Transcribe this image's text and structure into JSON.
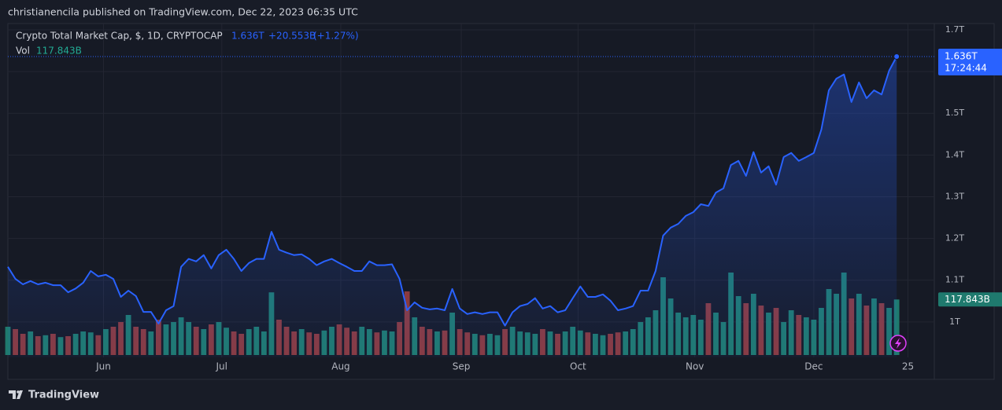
{
  "header": {
    "byline": "christianencila published on TradingView.com, Dec 22, 2023 06:35 UTC",
    "footer": "TradingView"
  },
  "chart_data": {
    "type": "line",
    "title": "Crypto Total Market Cap, $, 1D, CRYPTOCAP",
    "last_label": "1.636T",
    "change": "+20.553B",
    "change_pct": "(+1.27%)",
    "vol_title": "Vol",
    "vol_label": "117.843B",
    "countdown": "17:24:44",
    "color": "#2962ff",
    "grid": true,
    "categories": [
      null,
      null,
      null,
      null,
      null,
      null,
      null,
      null,
      null,
      null,
      null,
      null,
      null,
      null,
      null,
      null,
      null,
      null,
      null,
      null,
      null,
      null,
      null,
      null,
      null,
      null,
      null,
      null,
      null,
      null,
      null,
      null,
      null,
      null,
      null,
      null,
      null,
      null,
      null,
      null,
      null,
      null,
      null,
      null,
      null,
      null,
      null,
      null,
      null,
      null,
      null,
      null,
      null,
      null,
      null,
      null,
      null,
      null,
      null,
      null,
      null,
      null,
      null,
      null,
      null,
      null,
      null,
      null,
      null,
      null,
      null,
      null,
      null,
      null,
      null,
      null,
      null,
      null,
      null,
      null,
      null,
      null,
      null,
      null,
      null,
      null,
      null,
      null,
      null,
      null,
      null,
      null,
      null,
      null,
      null,
      null,
      null,
      null,
      null,
      null,
      null,
      null,
      null,
      null,
      null,
      null,
      null,
      null,
      null,
      null,
      null,
      null,
      null,
      null,
      null,
      null,
      null,
      null,
      null
    ],
    "values": [
      1.132,
      1.103,
      1.09,
      1.098,
      1.09,
      1.094,
      1.088,
      1.088,
      1.071,
      1.08,
      1.094,
      1.122,
      1.109,
      1.113,
      1.103,
      1.06,
      1.075,
      1.062,
      1.024,
      1.024,
      0.996,
      1.028,
      1.038,
      1.132,
      1.151,
      1.145,
      1.16,
      1.128,
      1.16,
      1.173,
      1.151,
      1.122,
      1.141,
      1.151,
      1.151,
      1.216,
      1.173,
      1.166,
      1.16,
      1.162,
      1.151,
      1.136,
      1.145,
      1.151,
      1.141,
      1.132,
      1.122,
      1.122,
      1.145,
      1.136,
      1.136,
      1.138,
      1.103,
      1.028,
      1.047,
      1.034,
      1.03,
      1.032,
      1.028,
      1.079,
      1.032,
      1.019,
      1.023,
      1.019,
      1.023,
      1.023,
      0.991,
      1.023,
      1.038,
      1.043,
      1.057,
      1.032,
      1.038,
      1.023,
      1.028,
      1.057,
      1.085,
      1.06,
      1.06,
      1.066,
      1.051,
      1.028,
      1.032,
      1.038,
      1.075,
      1.075,
      1.122,
      1.207,
      1.226,
      1.235,
      1.254,
      1.263,
      1.282,
      1.278,
      1.31,
      1.32,
      1.376,
      1.386,
      1.35,
      1.407,
      1.358,
      1.373,
      1.329,
      1.395,
      1.405,
      1.386,
      1.395,
      1.405,
      1.461,
      1.555,
      1.583,
      1.593,
      1.527,
      1.574,
      1.536,
      1.555,
      1.545,
      1.602,
      1.636
    ],
    "volume": {
      "up_color": "#1f7a6e",
      "down_color": "#8a3a3e",
      "values": [
        60,
        55,
        45,
        50,
        40,
        42,
        45,
        38,
        40,
        45,
        50,
        48,
        42,
        55,
        60,
        70,
        85,
        60,
        55,
        50,
        75,
        65,
        70,
        80,
        70,
        60,
        55,
        65,
        70,
        58,
        50,
        45,
        55,
        60,
        50,
        133,
        75,
        60,
        50,
        55,
        48,
        45,
        52,
        60,
        65,
        58,
        50,
        60,
        55,
        48,
        52,
        50,
        70,
        135,
        80,
        60,
        55,
        50,
        52,
        90,
        55,
        48,
        45,
        42,
        45,
        42,
        55,
        60,
        50,
        48,
        45,
        55,
        50,
        45,
        50,
        60,
        52,
        48,
        45,
        42,
        45,
        48,
        50,
        55,
        70,
        80,
        95,
        165,
        120,
        90,
        80,
        85,
        75,
        110,
        90,
        70,
        175,
        125,
        110,
        130,
        105,
        90,
        100,
        70,
        95,
        85,
        80,
        75,
        100,
        140,
        130,
        175,
        120,
        130,
        105,
        120,
        110,
        100,
        117.843
      ]
    },
    "xlim": [
      0,
      123
    ],
    "xticks": [
      {
        "value": 12.7,
        "label": "Jun"
      },
      {
        "value": 28.4,
        "label": "Jul"
      },
      {
        "value": 44.2,
        "label": "Aug"
      },
      {
        "value": 60.2,
        "label": "Sep"
      },
      {
        "value": 75.7,
        "label": "Oct"
      },
      {
        "value": 91.2,
        "label": "Nov"
      },
      {
        "value": 107,
        "label": "Dec"
      },
      {
        "value": 119.5,
        "label": "25"
      }
    ],
    "ylim": [
      0.915,
      1.715
    ],
    "yticks": [
      {
        "value": 1,
        "label": "1T"
      },
      {
        "value": 1.1,
        "label": "1.1T"
      },
      {
        "value": 1.2,
        "label": "1.2T"
      },
      {
        "value": 1.3,
        "label": "1.3T"
      },
      {
        "value": 1.4,
        "label": "1.4T"
      },
      {
        "value": 1.5,
        "label": "1.5T"
      },
      {
        "value": 1.6,
        "label": "1.6T"
      },
      {
        "value": 1.7,
        "label": "1.7T"
      }
    ]
  }
}
